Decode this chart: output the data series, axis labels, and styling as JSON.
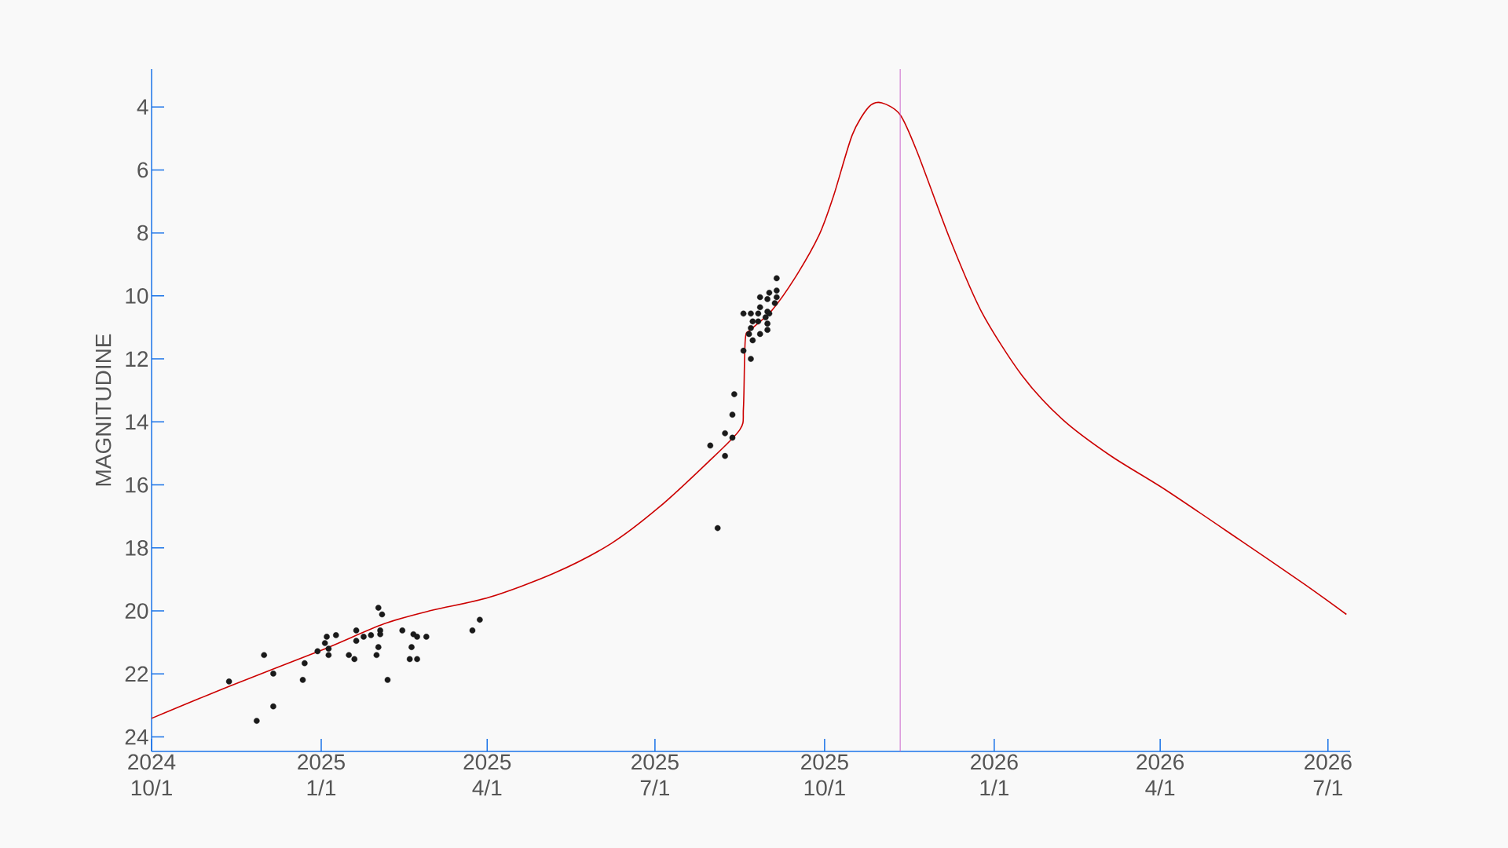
{
  "chart_data": {
    "type": "scatter",
    "ylabel": "MAGNITUDINE",
    "xlim": [
      "2024-10-01",
      "2026-07-13"
    ],
    "ylim": [
      24.46,
      2.8
    ],
    "xticks": [
      {
        "value": "2024-10-01",
        "label": "2024 10/1"
      },
      {
        "value": "2025-01-01",
        "label": "2025 1/1"
      },
      {
        "value": "2025-04-01",
        "label": "2025 4/1"
      },
      {
        "value": "2025-07-01",
        "label": "2025 7/1"
      },
      {
        "value": "2025-10-01",
        "label": "2025 10/1"
      },
      {
        "value": "2026-01-01",
        "label": "2026 1/1"
      },
      {
        "value": "2026-04-01",
        "label": "2026 4/1"
      },
      {
        "value": "2026-07-01",
        "label": "2026 7/1"
      }
    ],
    "yticks": [
      4,
      6,
      8,
      10,
      12,
      14,
      16,
      18,
      20,
      22,
      24
    ],
    "ref_lines": [
      {
        "axis": "x",
        "value": "2025-11-11",
        "color": "#cc66cc"
      }
    ],
    "series": [
      {
        "type": "line",
        "color": "#cc0000",
        "x": [
          "2024-10-01",
          "2024-11-13",
          "2025-01-01",
          "2025-02-04",
          "2025-03-02",
          "2025-04-02",
          "2025-05-07",
          "2025-06-07",
          "2025-07-03",
          "2025-07-29",
          "2025-08-16",
          "2025-08-18",
          "2025-08-19",
          "2025-08-22",
          "2025-09-02",
          "2025-09-15",
          "2025-09-28",
          "2025-10-06",
          "2025-10-16",
          "2025-10-25",
          "2025-11-01",
          "2025-11-11",
          "2025-11-20",
          "2025-12-08",
          "2025-12-25",
          "2026-01-16",
          "2026-02-07",
          "2026-03-05",
          "2026-04-04",
          "2026-05-14",
          "2026-06-18",
          "2026-07-11"
        ],
        "values": [
          23.41,
          22.37,
          21.25,
          20.41,
          19.98,
          19.57,
          18.81,
          17.87,
          16.72,
          15.32,
          14.25,
          13.54,
          11.38,
          11.07,
          10.49,
          9.42,
          8.07,
          6.8,
          4.89,
          4.0,
          3.87,
          4.25,
          5.4,
          8.2,
          10.49,
          12.52,
          13.92,
          15.07,
          16.16,
          17.74,
          19.14,
          20.11
        ]
      },
      {
        "marker": "circle",
        "color": "#1a1a1a",
        "x": [
          "2024-11-12",
          "2024-11-27",
          "2024-12-01",
          "2024-12-06",
          "2024-12-06",
          "2024-12-22",
          "2024-12-23",
          "2024-12-30",
          "2025-01-03",
          "2025-01-04",
          "2025-01-05",
          "2025-01-05",
          "2025-01-09",
          "2025-01-16",
          "2025-01-19",
          "2025-01-20",
          "2025-01-20",
          "2025-01-24",
          "2025-01-28",
          "2025-01-31",
          "2025-02-01",
          "2025-02-01",
          "2025-02-02",
          "2025-02-02",
          "2025-02-03",
          "2025-02-06",
          "2025-02-14",
          "2025-02-18",
          "2025-02-19",
          "2025-02-20",
          "2025-02-22",
          "2025-02-22",
          "2025-02-27",
          "2025-03-24",
          "2025-03-28",
          "2025-09-05",
          "2025-09-01",
          "2025-09-05",
          "2025-08-27",
          "2025-08-31",
          "2025-09-05",
          "2025-09-04",
          "2025-08-27",
          "2025-08-18",
          "2025-08-22",
          "2025-08-26",
          "2025-08-31",
          "2025-09-01",
          "2025-08-30",
          "2025-08-23",
          "2025-08-26",
          "2025-08-31",
          "2025-08-22",
          "2025-08-21",
          "2025-08-27",
          "2025-08-31",
          "2025-08-23",
          "2025-08-18",
          "2025-08-22",
          "2025-08-13",
          "2025-08-12",
          "2025-08-08",
          "2025-08-12",
          "2025-07-31",
          "2025-08-08",
          "2025-08-04"
        ],
        "values": [
          22.24,
          23.49,
          21.4,
          21.99,
          23.03,
          22.19,
          21.66,
          21.28,
          21.02,
          20.82,
          21.2,
          21.4,
          20.77,
          21.4,
          21.53,
          20.62,
          20.95,
          20.82,
          20.77,
          21.4,
          19.9,
          21.15,
          20.62,
          20.74,
          20.11,
          22.19,
          20.62,
          21.53,
          21.15,
          20.74,
          20.82,
          21.53,
          20.82,
          20.62,
          20.28,
          9.44,
          9.9,
          9.83,
          10.04,
          10.1,
          10.04,
          10.23,
          10.36,
          10.56,
          10.56,
          10.56,
          10.5,
          10.56,
          10.68,
          10.81,
          10.81,
          10.88,
          11.02,
          11.21,
          11.21,
          11.08,
          11.41,
          11.74,
          12.0,
          13.12,
          13.77,
          14.36,
          14.5,
          14.75,
          15.08,
          17.37
        ]
      }
    ]
  }
}
